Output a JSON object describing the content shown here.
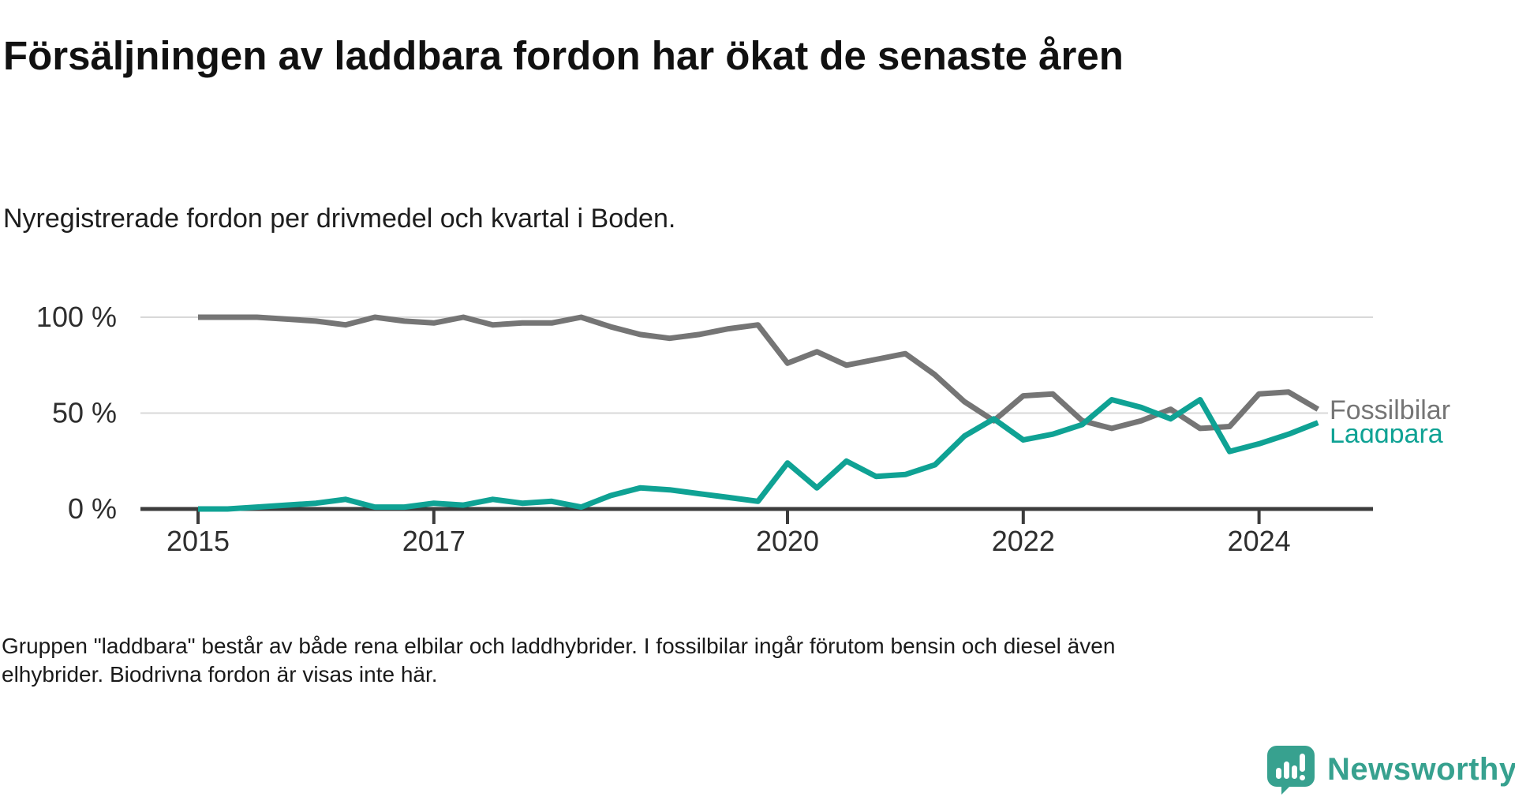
{
  "header": {
    "title": "Försäljningen av laddbara fordon har ökat de senaste åren",
    "subtitle": "Nyregistrerade fordon per drivmedel och kvartal i Boden."
  },
  "footer": {
    "line1": "Gruppen \"laddbara\" består av både rena elbilar och laddhybrider. I fossilbilar ingår förutom bensin och diesel även",
    "line2": "elhybrider. Biodrivna fordon är visas inte här."
  },
  "brand": {
    "name": "Newsworthy",
    "color": "#37a18f"
  },
  "chart_data": {
    "type": "line",
    "title": "Försäljningen av laddbara fordon har ökat de senaste åren",
    "subtitle": "Nyregistrerade fordon per drivmedel och kvartal i Boden.",
    "unit": "%",
    "ylim": [
      0,
      100
    ],
    "grid": "horizontal",
    "legend_position": "end-of-line-right",
    "yticks": [
      {
        "value": 100,
        "label": "100 %"
      },
      {
        "value": 50,
        "label": "50 %"
      },
      {
        "value": 0,
        "label": "0 %"
      }
    ],
    "xticks": [
      {
        "year": 2015,
        "label": "2015"
      },
      {
        "year": 2017,
        "label": "2017"
      },
      {
        "year": 2020,
        "label": "2020"
      },
      {
        "year": 2022,
        "label": "2022"
      },
      {
        "year": 2024,
        "label": "2024"
      }
    ],
    "categories": [
      "2015 Q1",
      "2015 Q2",
      "2015 Q3",
      "2015 Q4",
      "2016 Q1",
      "2016 Q2",
      "2016 Q3",
      "2016 Q4",
      "2017 Q1",
      "2017 Q2",
      "2017 Q3",
      "2017 Q4",
      "2018 Q1",
      "2018 Q2",
      "2018 Q3",
      "2018 Q4",
      "2019 Q1",
      "2019 Q2",
      "2019 Q3",
      "2019 Q4",
      "2020 Q1",
      "2020 Q2",
      "2020 Q3",
      "2020 Q4",
      "2021 Q1",
      "2021 Q2",
      "2021 Q3",
      "2021 Q4",
      "2022 Q1",
      "2022 Q2",
      "2022 Q3",
      "2022 Q4",
      "2023 Q1",
      "2023 Q2",
      "2023 Q3",
      "2023 Q4",
      "2024 Q1",
      "2024 Q2",
      "2024 Q3"
    ],
    "series": [
      {
        "name": "Fossilbilar",
        "color": "#757575",
        "values": [
          100,
          100,
          100,
          99,
          98,
          96,
          100,
          98,
          97,
          100,
          96,
          97,
          97,
          100,
          95,
          91,
          89,
          91,
          94,
          96,
          76,
          82,
          75,
          78,
          81,
          70,
          56,
          46,
          59,
          60,
          46,
          42,
          46,
          52,
          42,
          43,
          60,
          61,
          52
        ]
      },
      {
        "name": "Laddbara",
        "color": "#0fa294",
        "values": [
          0,
          0,
          1,
          2,
          3,
          5,
          1,
          1,
          3,
          2,
          5,
          3,
          4,
          1,
          7,
          11,
          10,
          8,
          6,
          4,
          24,
          11,
          25,
          17,
          18,
          23,
          38,
          47,
          36,
          39,
          44,
          57,
          53,
          47,
          57,
          30,
          34,
          39,
          45
        ]
      }
    ]
  }
}
